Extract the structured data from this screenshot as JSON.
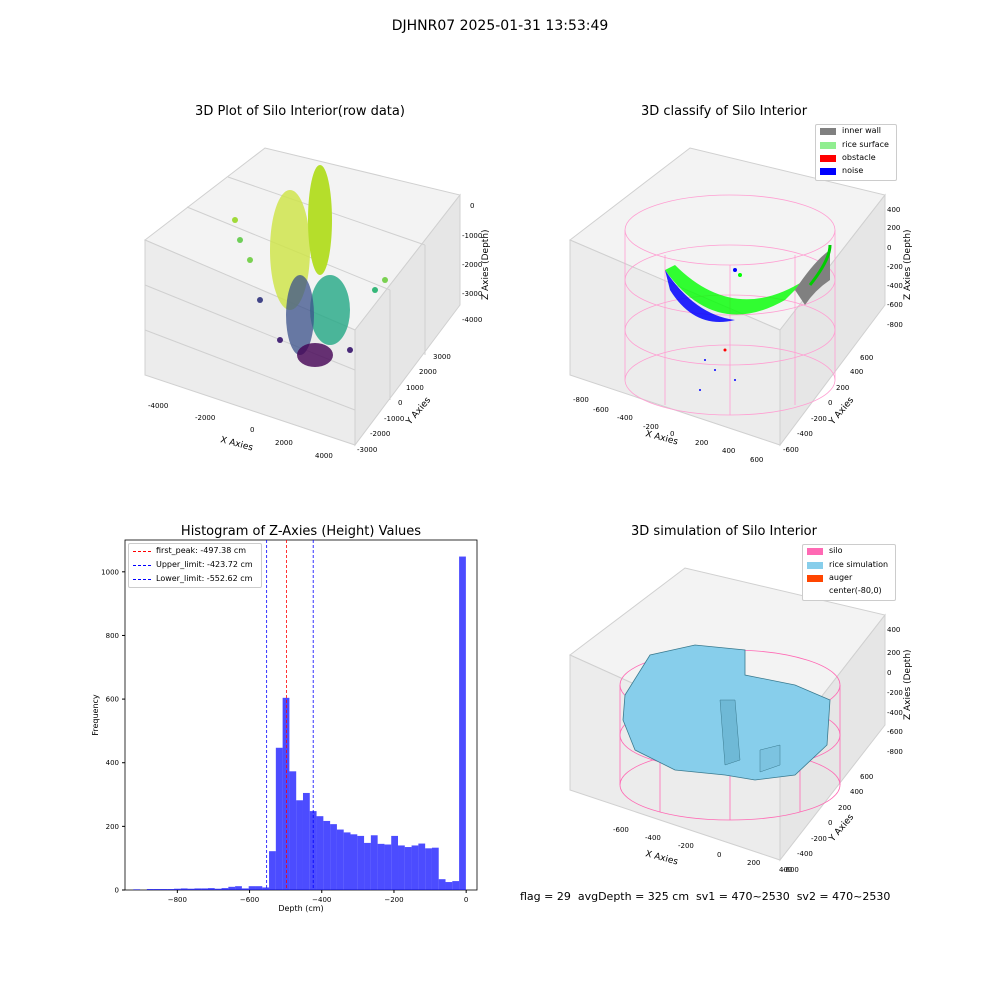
{
  "figure": {
    "suptitle": "DJHNR07 2025-01-31 13:53:49",
    "footer": "flag = 29  avgDepth = 325 cm  sv1 = 470~2530  sv2 = 470~2530"
  },
  "panels": {
    "raw": {
      "title": "3D Plot of Silo Interior(row data)",
      "xlabel": "X Axies",
      "ylabel": "Y Axies",
      "zlabel": "Z Axies (Depth)",
      "xticks": [
        "-4000",
        "-2000",
        "0",
        "2000",
        "4000"
      ],
      "yticks": [
        "-3000",
        "-2000",
        "-1000",
        "0",
        "1000",
        "2000",
        "3000"
      ],
      "zticks": [
        "0",
        "-1000",
        "-2000",
        "-3000",
        "-4000"
      ]
    },
    "classify": {
      "title": "3D classify of Silo Interior",
      "xlabel": "X Axies",
      "ylabel": "Y Axies",
      "zlabel": "Z Axies (Depth)",
      "xticks": [
        "-800",
        "-600",
        "-400",
        "-200",
        "0",
        "200",
        "400",
        "600"
      ],
      "yticks": [
        "-600",
        "-400",
        "-200",
        "0",
        "200",
        "400",
        "600"
      ],
      "zticks": [
        "400",
        "200",
        "0",
        "-200",
        "-400",
        "-600",
        "-800"
      ],
      "legend": [
        {
          "label": "inner wall",
          "color": "#808080"
        },
        {
          "label": "rice surface",
          "color": "#90ee90"
        },
        {
          "label": "obstacle",
          "color": "#ff0000"
        },
        {
          "label": "noise",
          "color": "#0000ff"
        }
      ]
    },
    "simulation": {
      "title": "3D simulation of Silo Interior",
      "xlabel": "X Axies",
      "ylabel": "Y Axies",
      "zlabel": "Z Axies (Depth)",
      "xticks": [
        "-600",
        "-400",
        "-200",
        "0",
        "200",
        "400"
      ],
      "yticks": [
        "-600",
        "-400",
        "-200",
        "0",
        "200",
        "400",
        "600"
      ],
      "zticks": [
        "400",
        "200",
        "0",
        "-200",
        "-400",
        "-600",
        "-800"
      ],
      "legend": [
        {
          "label": "silo",
          "color": "#ff69b4"
        },
        {
          "label": "rice simulation",
          "color": "#87ceeb"
        },
        {
          "label": "auger",
          "color": "#ff4500"
        },
        {
          "label": "center(-80,0)",
          "color": "#ffffff"
        }
      ]
    }
  },
  "chart_data": {
    "type": "bar",
    "title": "Histogram of Z-Axies (Height) Values",
    "xlabel": "Depth (cm)",
    "ylabel": "Frequency",
    "xlim": [
      -945,
      30
    ],
    "ylim": [
      0,
      1100
    ],
    "xticks": [
      -800,
      -600,
      -400,
      -200,
      0
    ],
    "yticks": [
      0,
      200,
      400,
      600,
      800,
      1000
    ],
    "bar_color": "#0000ff",
    "bin_width": 18.8,
    "bin_starts": [
      -922,
      -903.2,
      -884.4,
      -865.6,
      -846.8,
      -828,
      -809.2,
      -790.4,
      -771.6,
      -752.8,
      -734,
      -715.2,
      -696.4,
      -677.6,
      -658.8,
      -640,
      -621.2,
      -602.4,
      -583.6,
      -564.8,
      -546,
      -527.2,
      -508.4,
      -489.6,
      -470.8,
      -452,
      -433.2,
      -414.4,
      -395.6,
      -376.8,
      -358,
      -339.2,
      -320.4,
      -301.6,
      -282.8,
      -264,
      -245.2,
      -226.4,
      -207.6,
      -188.8,
      -170,
      -151.2,
      -132.4,
      -113.6,
      -94.8,
      -76,
      -57.2,
      -38.4,
      -19.6
    ],
    "values": [
      2,
      0,
      3,
      3,
      3,
      3,
      4,
      5,
      4,
      5,
      5,
      6,
      4,
      6,
      10,
      12,
      5,
      12,
      12,
      8,
      122,
      447,
      604,
      373,
      282,
      305,
      248,
      232,
      217,
      207,
      190,
      181,
      175,
      170,
      148,
      172,
      145,
      143,
      170,
      140,
      135,
      140,
      146,
      131,
      133,
      34,
      25,
      28,
      1048
    ],
    "vlines": [
      {
        "label": "first_peak: -497.38 cm",
        "value": -497.38,
        "color": "#ff0000"
      },
      {
        "label": "Upper_limit: -423.72 cm",
        "value": -423.72,
        "color": "#0000ff"
      },
      {
        "label": "Lower_limit: -552.62 cm",
        "value": -552.62,
        "color": "#0000ff"
      }
    ],
    "legend_position": "upper left"
  }
}
